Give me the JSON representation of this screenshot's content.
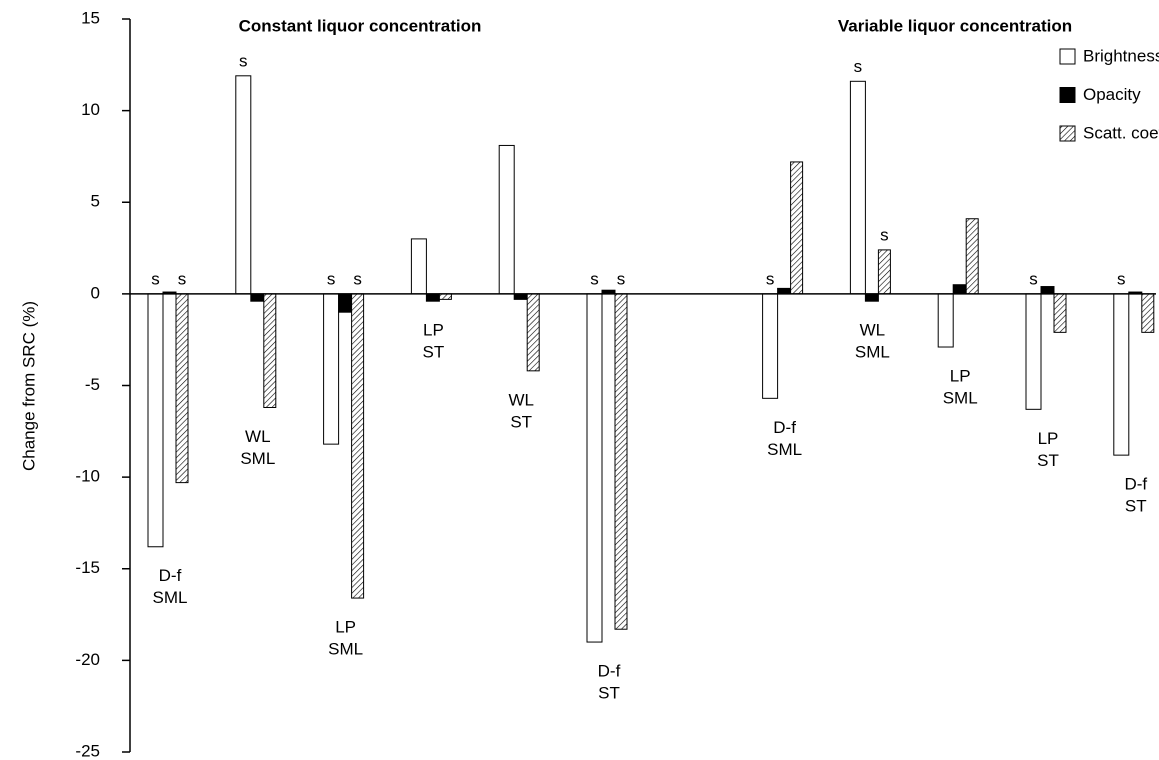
{
  "chart_data": {
    "type": "bar",
    "group_titles": [
      "Constant liquor concentration",
      "Variable liquor concentration"
    ],
    "ylabel": "Change from SRC (%)",
    "categories": [
      [
        "D-f",
        "SML"
      ],
      [
        "WL",
        "SML"
      ],
      [
        "LP",
        "SML"
      ],
      [
        "LP",
        "ST"
      ],
      [
        "WL",
        "ST"
      ],
      [
        "D-f",
        "ST"
      ],
      null,
      [
        "D-f",
        "SML"
      ],
      [
        "WL",
        "SML"
      ],
      [
        "LP",
        "SML"
      ],
      [
        "LP",
        "ST"
      ],
      [
        "D-f",
        "ST"
      ]
    ],
    "series": [
      {
        "name": "Brightness",
        "color": "#ffffff",
        "values": [
          -13.8,
          11.9,
          -8.2,
          3.0,
          8.1,
          -19.0,
          null,
          -5.7,
          11.6,
          -2.9,
          -6.3,
          -8.8
        ],
        "significance": [
          "s",
          "s",
          "s",
          null,
          null,
          "s",
          null,
          "s",
          "s",
          null,
          "s",
          "s"
        ]
      },
      {
        "name": "Opacity",
        "color": "#000000",
        "values": [
          0.1,
          -0.4,
          -1.0,
          -0.4,
          -0.3,
          0.2,
          null,
          0.3,
          -0.4,
          0.5,
          0.4,
          0.1
        ],
        "significance": [
          null,
          null,
          null,
          null,
          null,
          null,
          null,
          null,
          null,
          null,
          null,
          null
        ]
      },
      {
        "name": "Scatt. coeff.",
        "color": "#000000",
        "hatch": true,
        "values": [
          -10.3,
          -6.2,
          -16.6,
          -0.3,
          -4.2,
          -18.3,
          null,
          7.2,
          2.4,
          4.1,
          -2.1,
          -2.1
        ],
        "significance": [
          "s",
          null,
          "s",
          null,
          null,
          "s",
          null,
          null,
          "s",
          null,
          null,
          null
        ]
      }
    ],
    "ylim": [
      -25,
      15
    ],
    "yticks": [
      -25,
      -20,
      -15,
      -10,
      -5,
      0,
      5,
      10,
      15
    ]
  }
}
